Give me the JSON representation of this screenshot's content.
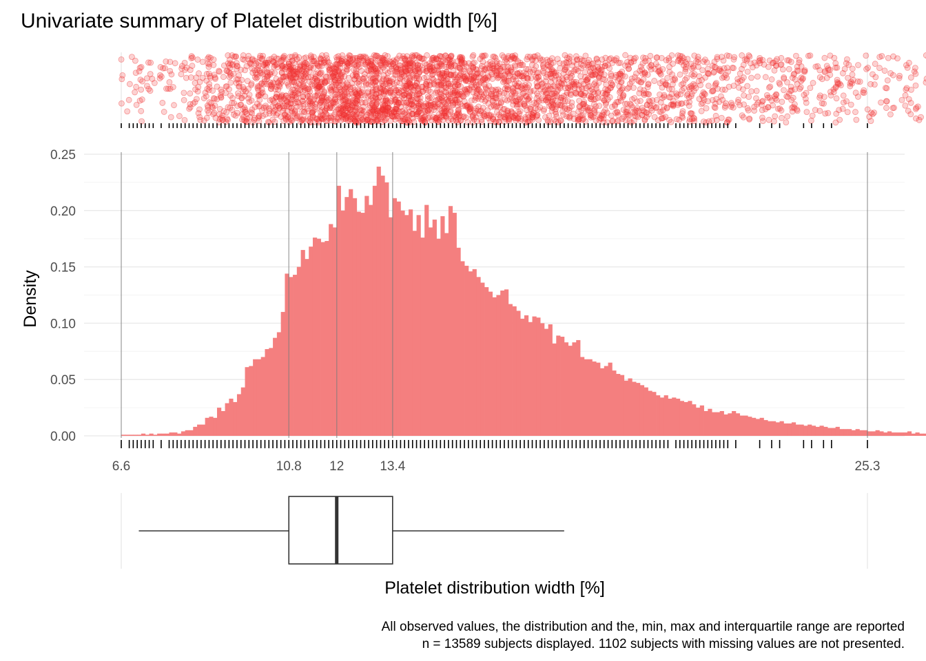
{
  "chart_data": {
    "type": "bar",
    "title": "Univariate summary of Platelet distribution width [%]",
    "xlabel": "Platelet distribution width [%]",
    "ylabel": "Density",
    "xlim": [
      6.6,
      25.3
    ],
    "ylim": [
      0,
      0.25
    ],
    "x_breaks": [
      6.6,
      10.8,
      12,
      13.4,
      25.3
    ],
    "x_break_labels": [
      "6.6",
      "10.8",
      "12",
      "13.4",
      "25.3"
    ],
    "y_ticks": [
      0,
      0.05,
      0.1,
      0.15,
      0.2,
      0.25
    ],
    "y_tick_labels": [
      "0.00",
      "0.05",
      "0.10",
      "0.15",
      "0.20",
      "0.25"
    ],
    "grid": true,
    "summary": {
      "min": 6.6,
      "q1": 10.8,
      "median": 12,
      "q3": 13.4,
      "max": 25.3,
      "whisker_low": 7.04,
      "whisker_high": 17.7
    },
    "histogram": {
      "bin_width": 0.1,
      "x_start": 6.6,
      "density": [
        0.001,
        0.001,
        0.001,
        0.001,
        0.001,
        0.002,
        0.001,
        0.002,
        0.001,
        0.002,
        0.002,
        0.002,
        0.003,
        0.003,
        0.002,
        0.004,
        0.005,
        0.005,
        0.008,
        0.01,
        0.01,
        0.016,
        0.017,
        0.016,
        0.025,
        0.022,
        0.029,
        0.033,
        0.03,
        0.037,
        0.043,
        0.061,
        0.062,
        0.068,
        0.068,
        0.07,
        0.077,
        0.078,
        0.087,
        0.092,
        0.11,
        0.144,
        0.141,
        0.143,
        0.15,
        0.165,
        0.157,
        0.168,
        0.176,
        0.175,
        0.172,
        0.173,
        0.188,
        0.185,
        0.222,
        0.2,
        0.212,
        0.219,
        0.211,
        0.199,
        0.198,
        0.213,
        0.205,
        0.222,
        0.239,
        0.231,
        0.225,
        0.194,
        0.211,
        0.208,
        0.2,
        0.196,
        0.201,
        0.182,
        0.196,
        0.176,
        0.205,
        0.185,
        0.192,
        0.175,
        0.195,
        0.18,
        0.204,
        0.198,
        0.167,
        0.155,
        0.151,
        0.146,
        0.148,
        0.141,
        0.136,
        0.132,
        0.128,
        0.123,
        0.125,
        0.129,
        0.13,
        0.117,
        0.115,
        0.111,
        0.104,
        0.107,
        0.101,
        0.106,
        0.105,
        0.1,
        0.095,
        0.099,
        0.082,
        0.089,
        0.088,
        0.083,
        0.08,
        0.083,
        0.085,
        0.07,
        0.068,
        0.068,
        0.066,
        0.065,
        0.06,
        0.062,
        0.065,
        0.058,
        0.055,
        0.054,
        0.049,
        0.051,
        0.048,
        0.047,
        0.045,
        0.043,
        0.04,
        0.039,
        0.036,
        0.034,
        0.036,
        0.033,
        0.034,
        0.033,
        0.031,
        0.03,
        0.031,
        0.028,
        0.025,
        0.027,
        0.022,
        0.024,
        0.021,
        0.021,
        0.022,
        0.019,
        0.02,
        0.022,
        0.02,
        0.018,
        0.018,
        0.017,
        0.016,
        0.015,
        0.016,
        0.014,
        0.013,
        0.013,
        0.012,
        0.013,
        0.011,
        0.011,
        0.012,
        0.01,
        0.01,
        0.009,
        0.01,
        0.009,
        0.008,
        0.009,
        0.008,
        0.007,
        0.007,
        0.008,
        0.006,
        0.006,
        0.006,
        0.005,
        0.006,
        0.005,
        0.005,
        0.004,
        0.004,
        0.005,
        0.004,
        0.003,
        0.004,
        0.003,
        0.003,
        0.003,
        0.003,
        0.004,
        0.002,
        0.003,
        0.002,
        0.002,
        0.003,
        0.002,
        0.002,
        0.002,
        0.002,
        0.002,
        0.002,
        0.001,
        0.002,
        0.001,
        0.001,
        0.001,
        0.001,
        0.001,
        0.001,
        0.001,
        0.001,
        0.001,
        0.001,
        0.001,
        0.001,
        0.001,
        0.001,
        0.001,
        0.001,
        0.001,
        0.001,
        0.001,
        0.001,
        0.001,
        0.001,
        0.001,
        0.001,
        0.001,
        0.001,
        0.001,
        0.0,
        0.001,
        0.001,
        0.0,
        0.001,
        0.0,
        0.001,
        0.0,
        0.0,
        0.0,
        0.001,
        0.0,
        0.0,
        0.0,
        0.0,
        0.0,
        0.001,
        0.0,
        0.0,
        0.0,
        0.0,
        0.0,
        0.0,
        0.0,
        0.0,
        0.0,
        0.0,
        0.001,
        0.0,
        0.0,
        0.0,
        0.0,
        0.0,
        0.0,
        0.0,
        0.0,
        0.0,
        0.0,
        0.0,
        0.0,
        0.0,
        0.0,
        0.0,
        0.0,
        0.0,
        0.0,
        0.0,
        0.0,
        0.0,
        0.0,
        0.0,
        0.0,
        0.0,
        0.0,
        0.0,
        0.0,
        0.0,
        0.0,
        0.0,
        0.0,
        0.0,
        0.0,
        0.0,
        0.0,
        0.0,
        0.0,
        0.0,
        0.0,
        0.0,
        0.0,
        0.0,
        0.0,
        0.0,
        0.0,
        0.0,
        0.0,
        0.0,
        0.0,
        0.0,
        0.0,
        0.0,
        0.0,
        0.0,
        0.0,
        0.0,
        0.0,
        0.0,
        0.0,
        0.0,
        0.0,
        0.0,
        0.0,
        0.0,
        0.0,
        0.0,
        0.0,
        0.0,
        0.0,
        0.0,
        0.0,
        0.0,
        0.0,
        0.0,
        0.0,
        0.0,
        0.0,
        0.0,
        0.0,
        0.0,
        0.0,
        0.0,
        0.0,
        0.0,
        0.0,
        0.0,
        0.0,
        0.0,
        0.0,
        0.0,
        0.0,
        0.0,
        0.0,
        0.0,
        0.0,
        0.0,
        0.0,
        0.0,
        0.001
      ]
    },
    "rug_values": [
      6.6,
      6.8,
      6.9,
      7.0,
      7.1,
      7.2,
      7.3,
      7.4,
      7.6,
      7.8,
      7.9,
      8.0,
      8.1,
      8.2,
      8.3,
      8.4,
      8.5,
      8.6,
      8.7,
      8.8,
      8.9,
      9.0,
      9.1,
      9.2,
      9.3,
      9.4,
      9.5,
      9.6,
      9.7,
      9.8,
      9.9,
      10.0,
      10.1,
      10.2,
      10.3,
      10.4,
      10.5,
      10.6,
      10.7,
      10.8,
      10.9,
      11.0,
      11.1,
      11.2,
      11.3,
      11.4,
      11.5,
      11.6,
      11.7,
      11.8,
      11.9,
      12.0,
      12.1,
      12.2,
      12.3,
      12.4,
      12.5,
      12.6,
      12.7,
      12.8,
      12.9,
      13.0,
      13.1,
      13.2,
      13.3,
      13.4,
      13.5,
      13.6,
      13.7,
      13.8,
      13.9,
      14.0,
      14.1,
      14.2,
      14.3,
      14.4,
      14.5,
      14.6,
      14.7,
      14.8,
      14.9,
      15.0,
      15.1,
      15.2,
      15.3,
      15.4,
      15.5,
      15.6,
      15.7,
      15.8,
      15.9,
      16.0,
      16.1,
      16.2,
      16.3,
      16.4,
      16.5,
      16.6,
      16.7,
      16.8,
      16.9,
      17.0,
      17.1,
      17.2,
      17.3,
      17.4,
      17.5,
      17.6,
      17.7,
      17.8,
      17.9,
      18.0,
      18.1,
      18.2,
      18.3,
      18.4,
      18.5,
      18.6,
      18.7,
      18.8,
      18.9,
      19.0,
      19.1,
      19.2,
      19.3,
      19.4,
      19.5,
      19.6,
      19.7,
      19.8,
      19.9,
      20.0,
      20.1,
      20.2,
      20.3,
      20.5,
      20.6,
      20.7,
      20.8,
      20.9,
      21.0,
      21.1,
      21.2,
      21.3,
      21.4,
      21.5,
      21.6,
      21.7,
      21.8,
      22.0,
      22.6,
      22.9,
      23.1,
      23.7,
      23.9,
      24.2,
      24.4,
      25.3
    ],
    "point_color": "#f03030",
    "bar_color": "#f47f7f",
    "caption_lines": [
      "All observed values, the distribution and the, min, max and interquartile range are reported",
      "n = 13589 subjects displayed. 1102 subjects with missing values are not presented."
    ]
  }
}
